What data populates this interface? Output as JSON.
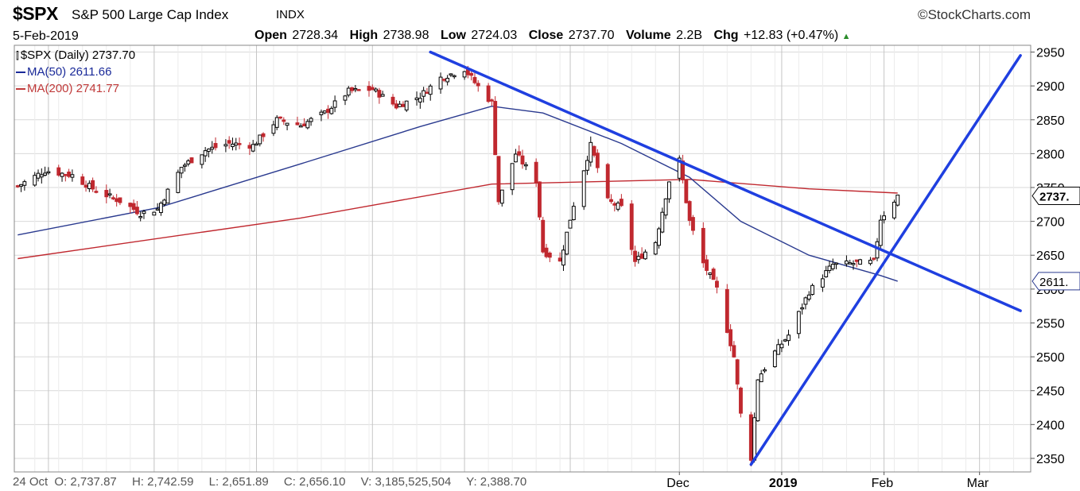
{
  "header": {
    "symbol": "$SPX",
    "name": "S&P 500 Large Cap Index",
    "exchange": "INDX",
    "brand": "StockCharts.com",
    "date": "5-Feb-2019",
    "open_label": "Open",
    "open": "2728.34",
    "high_label": "High",
    "high": "2738.98",
    "low_label": "Low",
    "low": "2724.03",
    "close_label": "Close",
    "close": "2737.70",
    "volume_label": "Volume",
    "volume": "2.2B",
    "chg_label": "Chg",
    "chg": "+12.83 (+0.47%)"
  },
  "legend": {
    "price": "$SPX (Daily) 2737.70",
    "ma50": "MA(50) 2611.66",
    "ma200": "MA(200) 2741.77"
  },
  "footer": {
    "date": "24 Oct",
    "o": "O: 2,737.87",
    "h": "H: 2,742.59",
    "l": "L: 2,651.89",
    "c": "C: 2,656.10",
    "v": "V: 3,185,525,504",
    "y": "Y: 2,388.70"
  },
  "colors": {
    "up": "#000000",
    "down": "#c0282f",
    "ma50": "#2a3a8f",
    "ma200": "#c0282f",
    "trend": "#1f3fe0",
    "grid": "#d9d9d9"
  },
  "chart_data": {
    "type": "candlestick",
    "title": "$SPX S&P 500 Large Cap Index INDX",
    "ylim": [
      2330,
      2960
    ],
    "y_ticks": [
      2350,
      2400,
      2450,
      2500,
      2550,
      2600,
      2650,
      2700,
      2750,
      2800,
      2850,
      2900,
      2950
    ],
    "x_tick_labels": [
      "Dec",
      "2019",
      "Feb",
      "Mar"
    ],
    "price_badge": "2737.",
    "ma50_badge": "2611.",
    "close_points": [
      [
        "2018-05-23",
        2752
      ],
      [
        "2018-05-31",
        2775
      ],
      [
        "2018-06-08",
        2768
      ],
      [
        "2018-06-15",
        2745
      ],
      [
        "2018-06-22",
        2730
      ],
      [
        "2018-06-28",
        2712
      ],
      [
        "2018-07-03",
        2718
      ],
      [
        "2018-07-10",
        2780
      ],
      [
        "2018-07-17",
        2805
      ],
      [
        "2018-07-24",
        2815
      ],
      [
        "2018-07-31",
        2812
      ],
      [
        "2018-08-07",
        2850
      ],
      [
        "2018-08-14",
        2842
      ],
      [
        "2018-08-21",
        2860
      ],
      [
        "2018-08-28",
        2892
      ],
      [
        "2018-09-04",
        2895
      ],
      [
        "2018-09-11",
        2870
      ],
      [
        "2018-09-18",
        2885
      ],
      [
        "2018-09-24",
        2912
      ],
      [
        "2018-10-01",
        2925
      ],
      [
        "2018-10-04",
        2905
      ],
      [
        "2018-10-09",
        2875
      ],
      [
        "2018-10-11",
        2730
      ],
      [
        "2018-10-16",
        2800
      ],
      [
        "2018-10-22",
        2760
      ],
      [
        "2018-10-24",
        2656
      ],
      [
        "2018-10-29",
        2640
      ],
      [
        "2018-11-02",
        2725
      ],
      [
        "2018-11-07",
        2812
      ],
      [
        "2018-11-12",
        2730
      ],
      [
        "2018-11-16",
        2720
      ],
      [
        "2018-11-20",
        2640
      ],
      [
        "2018-11-26",
        2670
      ],
      [
        "2018-11-30",
        2760
      ],
      [
        "2018-12-03",
        2790
      ],
      [
        "2018-12-06",
        2700
      ],
      [
        "2018-12-10",
        2638
      ],
      [
        "2018-12-14",
        2600
      ],
      [
        "2018-12-19",
        2500
      ],
      [
        "2018-12-21",
        2415
      ],
      [
        "2018-12-24",
        2351
      ],
      [
        "2018-12-26",
        2468
      ],
      [
        "2018-12-31",
        2507
      ],
      [
        "2019-01-04",
        2532
      ],
      [
        "2019-01-10",
        2596
      ],
      [
        "2019-01-17",
        2636
      ],
      [
        "2019-01-23",
        2638
      ],
      [
        "2019-01-29",
        2640
      ],
      [
        "2019-01-31",
        2704
      ],
      [
        "2019-02-05",
        2737.7
      ]
    ],
    "ma50": [
      [
        "2018-05-23",
        2680
      ],
      [
        "2018-07-03",
        2720
      ],
      [
        "2018-08-14",
        2785
      ],
      [
        "2018-09-18",
        2840
      ],
      [
        "2018-10-09",
        2870
      ],
      [
        "2018-10-24",
        2860
      ],
      [
        "2018-11-16",
        2815
      ],
      [
        "2018-12-06",
        2765
      ],
      [
        "2018-12-21",
        2700
      ],
      [
        "2019-01-10",
        2650
      ],
      [
        "2019-01-31",
        2620
      ],
      [
        "2019-02-05",
        2611.66
      ]
    ],
    "ma200": [
      [
        "2018-05-23",
        2645
      ],
      [
        "2018-08-14",
        2705
      ],
      [
        "2018-10-09",
        2755
      ],
      [
        "2018-12-06",
        2762
      ],
      [
        "2019-01-10",
        2748
      ],
      [
        "2019-02-05",
        2741.77
      ]
    ],
    "trendlines": [
      {
        "name": "resistance",
        "from": [
          "2018-09-21",
          2950
        ],
        "to": [
          "2019-03-13",
          2568
        ]
      },
      {
        "name": "support",
        "from": [
          "2018-12-24",
          2341
        ],
        "to": [
          "2019-03-13",
          2945
        ]
      }
    ]
  }
}
